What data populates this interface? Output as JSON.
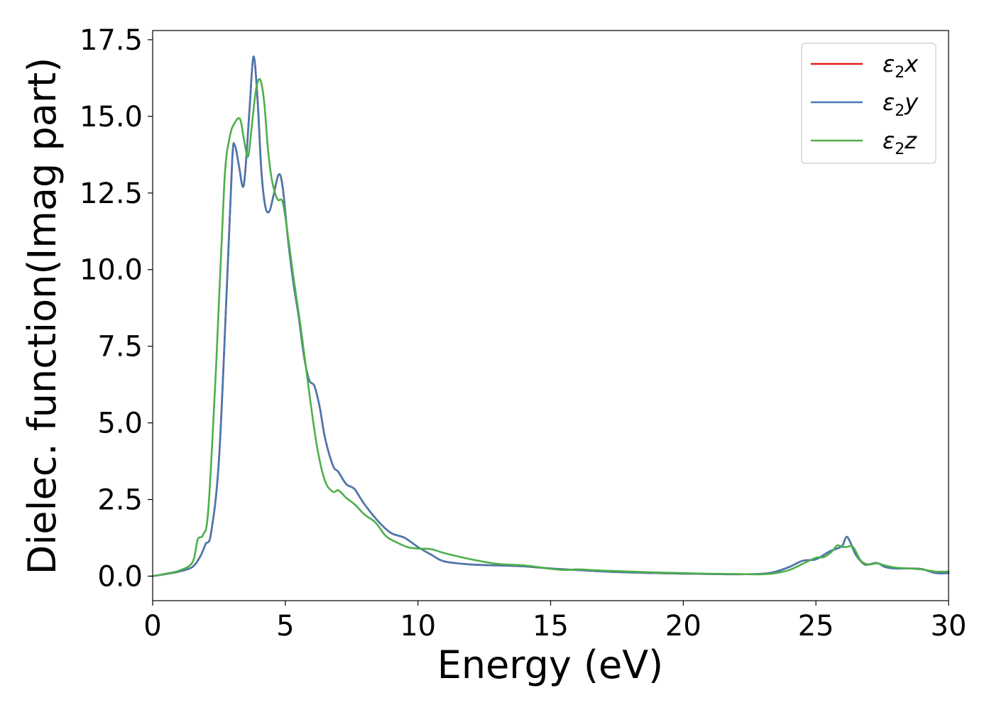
{
  "chart_data": {
    "type": "line",
    "title": "",
    "xlabel": "Energy (eV)",
    "ylabel": "Dielec. function(Imag part)",
    "xlim": [
      0,
      30
    ],
    "ylim": [
      -0.8,
      17.8
    ],
    "xticks": [
      "0",
      "5",
      "10",
      "15",
      "20",
      "25",
      "30"
    ],
    "yticks": [
      "0.0",
      "2.5",
      "5.0",
      "7.5",
      "10.0",
      "12.5",
      "15.0",
      "17.5"
    ],
    "grid": false,
    "legend_position": "top-right",
    "series": [
      {
        "name": "ε2x",
        "legend": {
          "sym": "ε",
          "sub": "2",
          "axis": "x"
        },
        "color": "#e41a1c",
        "x": [
          0,
          0.5,
          1,
          1.5,
          1.8,
          2,
          2.2,
          2.5,
          2.8,
          3,
          3.1,
          3.25,
          3.4,
          3.5,
          3.65,
          3.8,
          3.95,
          4.1,
          4.25,
          4.4,
          4.55,
          4.75,
          4.9,
          5.1,
          5.3,
          5.5,
          5.7,
          5.9,
          6.1,
          6.3,
          6.5,
          6.8,
          7,
          7.3,
          7.6,
          7.9,
          8.2,
          8.6,
          9,
          9.5,
          10,
          10.5,
          11,
          12,
          13,
          14,
          15,
          16,
          17,
          18,
          19,
          20,
          21,
          22,
          23,
          23.5,
          24,
          24.5,
          25,
          25.5,
          25.8,
          26,
          26.15,
          26.3,
          26.5,
          26.8,
          27,
          27.3,
          27.6,
          28,
          28.5,
          29,
          29.5,
          30
        ],
        "y": [
          0,
          0.07,
          0.15,
          0.3,
          0.65,
          1.05,
          1.4,
          3.8,
          9.5,
          13.6,
          14.05,
          13.4,
          12.7,
          13.3,
          15.2,
          16.95,
          15.6,
          13.2,
          12.05,
          11.9,
          12.4,
          13.1,
          12.7,
          11.0,
          9.6,
          8.5,
          7.2,
          6.4,
          6.2,
          5.5,
          4.5,
          3.6,
          3.4,
          3.0,
          2.85,
          2.45,
          2.1,
          1.7,
          1.4,
          1.25,
          0.95,
          0.7,
          0.48,
          0.38,
          0.35,
          0.32,
          0.25,
          0.2,
          0.15,
          0.12,
          0.1,
          0.08,
          0.07,
          0.06,
          0.08,
          0.15,
          0.3,
          0.5,
          0.55,
          0.8,
          0.9,
          1.0,
          1.28,
          1.1,
          0.7,
          0.4,
          0.38,
          0.43,
          0.3,
          0.25,
          0.25,
          0.23,
          0.1,
          0.1
        ]
      },
      {
        "name": "ε2y",
        "legend": {
          "sym": "ε",
          "sub": "2",
          "axis": "y"
        },
        "color": "#4878b0",
        "x": [
          0,
          0.5,
          1,
          1.5,
          1.8,
          2,
          2.2,
          2.5,
          2.8,
          3,
          3.1,
          3.25,
          3.4,
          3.5,
          3.65,
          3.8,
          3.95,
          4.1,
          4.25,
          4.4,
          4.55,
          4.75,
          4.9,
          5.1,
          5.3,
          5.5,
          5.7,
          5.9,
          6.1,
          6.3,
          6.5,
          6.8,
          7,
          7.3,
          7.6,
          7.9,
          8.2,
          8.6,
          9,
          9.5,
          10,
          10.5,
          11,
          12,
          13,
          14,
          15,
          16,
          17,
          18,
          19,
          20,
          21,
          22,
          23,
          23.5,
          24,
          24.5,
          25,
          25.5,
          25.8,
          26,
          26.15,
          26.3,
          26.5,
          26.8,
          27,
          27.3,
          27.6,
          28,
          28.5,
          29,
          29.5,
          30
        ],
        "y": [
          0,
          0.07,
          0.15,
          0.3,
          0.65,
          1.05,
          1.4,
          3.8,
          9.5,
          13.6,
          14.05,
          13.4,
          12.7,
          13.3,
          15.2,
          16.95,
          15.6,
          13.2,
          12.05,
          11.9,
          12.4,
          13.1,
          12.7,
          11.0,
          9.6,
          8.5,
          7.2,
          6.4,
          6.2,
          5.5,
          4.5,
          3.6,
          3.4,
          3.0,
          2.85,
          2.45,
          2.1,
          1.7,
          1.4,
          1.25,
          0.95,
          0.7,
          0.48,
          0.38,
          0.35,
          0.32,
          0.25,
          0.2,
          0.15,
          0.12,
          0.1,
          0.08,
          0.07,
          0.06,
          0.08,
          0.15,
          0.3,
          0.5,
          0.55,
          0.8,
          0.9,
          1.0,
          1.28,
          1.1,
          0.7,
          0.4,
          0.38,
          0.43,
          0.3,
          0.25,
          0.25,
          0.23,
          0.1,
          0.1
        ]
      },
      {
        "name": "ε2z",
        "legend": {
          "sym": "ε",
          "sub": "2",
          "axis": "z"
        },
        "color": "#4daf4a",
        "x": [
          0,
          0.5,
          1,
          1.5,
          1.7,
          1.9,
          2.1,
          2.4,
          2.7,
          2.9,
          3.1,
          3.3,
          3.45,
          3.6,
          3.75,
          3.9,
          4.05,
          4.2,
          4.35,
          4.5,
          4.7,
          4.9,
          5.1,
          5.3,
          5.6,
          5.9,
          6.2,
          6.5,
          6.8,
          7,
          7.3,
          7.6,
          8,
          8.4,
          8.8,
          9.2,
          9.6,
          10,
          10.5,
          11,
          12,
          13,
          14,
          15,
          15.5,
          16,
          16.5,
          17,
          18,
          19,
          20,
          21,
          22,
          23,
          23.5,
          24,
          24.5,
          25,
          25.3,
          25.6,
          25.8,
          26,
          26.15,
          26.4,
          26.7,
          27,
          27.3,
          27.6,
          28,
          28.5,
          29,
          29.5,
          30
        ],
        "y": [
          0,
          0.08,
          0.18,
          0.45,
          1.2,
          1.35,
          2.2,
          7.0,
          12.8,
          14.3,
          14.8,
          14.9,
          14.2,
          13.7,
          14.8,
          15.9,
          16.2,
          15.5,
          13.9,
          12.9,
          12.3,
          12.2,
          11.1,
          9.8,
          8.0,
          6.0,
          4.2,
          3.1,
          2.75,
          2.8,
          2.55,
          2.35,
          2.0,
          1.75,
          1.3,
          1.1,
          0.95,
          0.9,
          0.88,
          0.75,
          0.55,
          0.4,
          0.35,
          0.24,
          0.2,
          0.22,
          0.2,
          0.18,
          0.15,
          0.12,
          0.1,
          0.08,
          0.07,
          0.06,
          0.1,
          0.2,
          0.4,
          0.6,
          0.62,
          0.8,
          1.0,
          0.95,
          0.95,
          0.95,
          0.5,
          0.38,
          0.42,
          0.35,
          0.28,
          0.25,
          0.22,
          0.15,
          0.15
        ]
      }
    ]
  }
}
